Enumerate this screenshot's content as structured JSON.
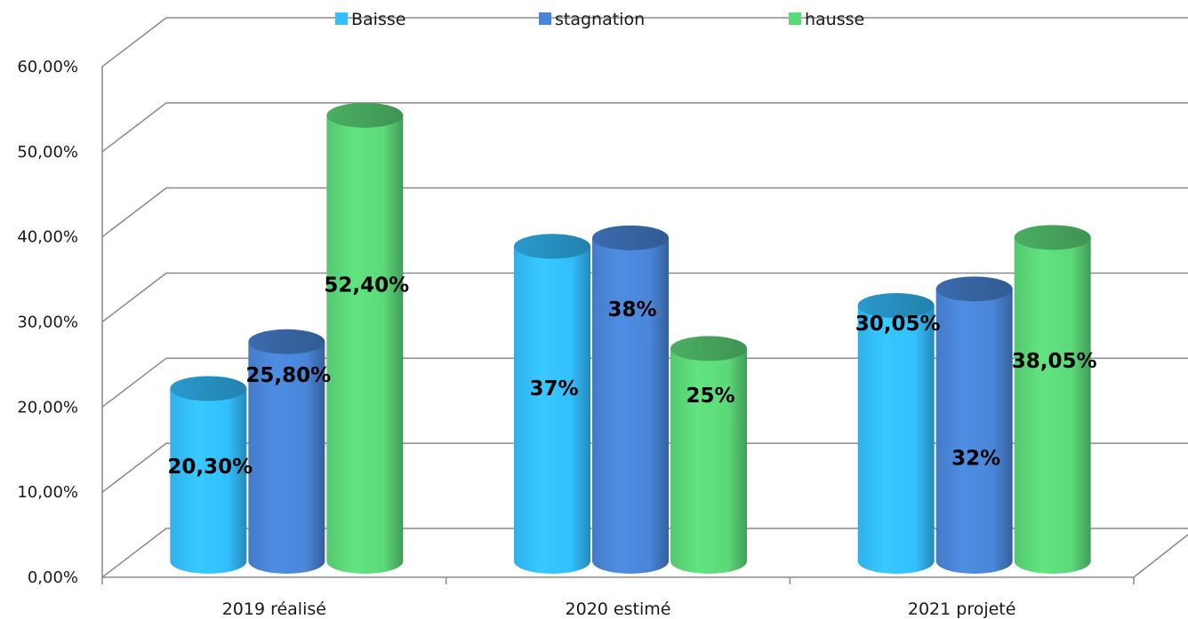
{
  "chart_data": {
    "type": "bar",
    "style": "3d-cylinder",
    "categories": [
      "2019 réalisé",
      "2020 estimé",
      "2021 projeté"
    ],
    "series": [
      {
        "name": "Baisse",
        "values": [
          20.3,
          37,
          30.05
        ],
        "labels": [
          "20,30%",
          "37%",
          "30,05%"
        ],
        "color": "#33bfff"
      },
      {
        "name": "stagnation",
        "values": [
          25.8,
          38,
          32
        ],
        "labels": [
          "25,80%",
          "38%",
          "32%"
        ],
        "color": "#4a86d8"
      },
      {
        "name": "hausse",
        "values": [
          52.4,
          25,
          38.05
        ],
        "labels": [
          "52,40%",
          "25%",
          "38,05%"
        ],
        "color": "#5cd97a"
      }
    ],
    "yticks": [
      "0,00%",
      "10,00%",
      "20,00%",
      "30,00%",
      "40,00%",
      "50,00%",
      "60,00%"
    ],
    "ylim": [
      0,
      60
    ],
    "grid": true,
    "legend_position": "top-center",
    "title": "",
    "xlabel": "",
    "ylabel": ""
  }
}
